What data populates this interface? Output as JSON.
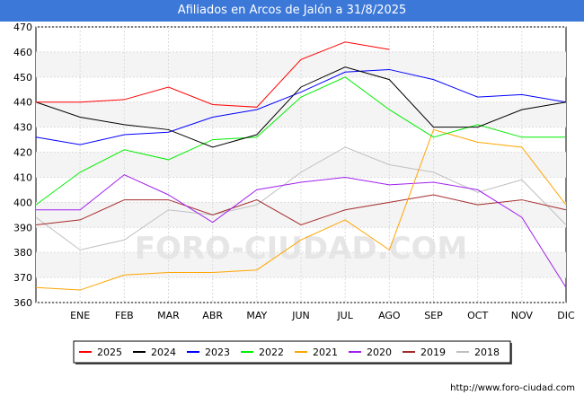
{
  "header": {
    "title": "Afiliados en Arcos de Jalón a 31/8/2025"
  },
  "watermark": "FORO-CIUDAD.COM",
  "source": "http://www.foro-ciudad.com",
  "chart_data": {
    "type": "line",
    "title": "Afiliados en Arcos de Jalón a 31/8/2025",
    "categories": [
      "",
      "ENE",
      "FEB",
      "MAR",
      "ABR",
      "MAY",
      "JUN",
      "JUL",
      "AGO",
      "SEP",
      "OCT",
      "NOV",
      "DIC"
    ],
    "ylim": [
      360,
      470
    ],
    "yticks": [
      360,
      370,
      380,
      390,
      400,
      410,
      420,
      430,
      440,
      450,
      460,
      470
    ],
    "grid": true,
    "legend_position": "bottom",
    "series": [
      {
        "name": "2025",
        "color": "#ff0000",
        "values": [
          440,
          440,
          441,
          446,
          439,
          438,
          457,
          464,
          461,
          null,
          null,
          null,
          null
        ]
      },
      {
        "name": "2024",
        "color": "#000000",
        "values": [
          440,
          434,
          431,
          429,
          422,
          427,
          446,
          454,
          449,
          430,
          430,
          437,
          440
        ]
      },
      {
        "name": "2023",
        "color": "#0000ff",
        "values": [
          426,
          423,
          427,
          428,
          434,
          437,
          444,
          452,
          453,
          449,
          442,
          443,
          440
        ]
      },
      {
        "name": "2022",
        "color": "#00ee00",
        "values": [
          399,
          412,
          421,
          417,
          425,
          426,
          442,
          450,
          437,
          426,
          431,
          426,
          426
        ]
      },
      {
        "name": "2021",
        "color": "#ffa500",
        "values": [
          366,
          365,
          371,
          372,
          372,
          373,
          385,
          393,
          381,
          429,
          424,
          422,
          399
        ]
      },
      {
        "name": "2020",
        "color": "#a020f0",
        "values": [
          397,
          397,
          411,
          403,
          392,
          405,
          408,
          410,
          407,
          408,
          405,
          394,
          366
        ]
      },
      {
        "name": "2019",
        "color": "#a52a2a",
        "values": [
          391,
          393,
          401,
          401,
          395,
          401,
          391,
          397,
          400,
          403,
          399,
          401,
          397
        ]
      },
      {
        "name": "2018",
        "color": "#c0c0c0",
        "values": [
          394,
          381,
          385,
          397,
          395,
          399,
          412,
          422,
          415,
          412,
          404,
          409,
          391
        ]
      }
    ]
  }
}
